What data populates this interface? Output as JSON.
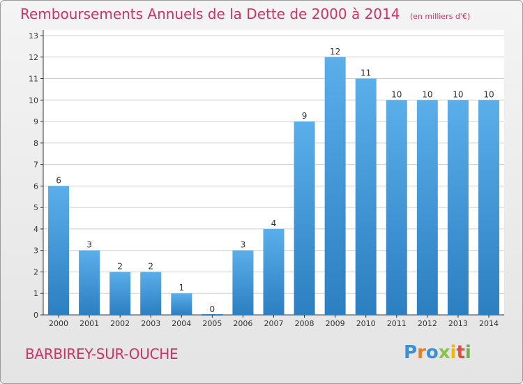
{
  "header": {
    "title": "Remboursements Annuels de la Dette de 2000 à 2014",
    "subtitle": "(en milliers d'€)"
  },
  "footer": {
    "commune": "BARBIREY-SUR-OUCHE",
    "logo_letters": [
      "P",
      "r",
      "o",
      "x",
      "i",
      "t",
      "i"
    ],
    "logo_colors": [
      "#3a8fd6",
      "#e67e22",
      "#3a8fd6",
      "#8bc34a",
      "#f5b800",
      "#e04e39",
      "#6db33f"
    ]
  },
  "colors": {
    "bar_light": "#5aaeea",
    "bar_dark": "#2c7fc0",
    "title": "#cc3366",
    "axis": "#333333",
    "grid": "#d0d0d0"
  },
  "chart_data": {
    "type": "bar",
    "title": "Remboursements Annuels de la Dette de 2000 à 2014",
    "subtitle": "(en milliers d'€)",
    "xlabel": "",
    "ylabel": "",
    "categories": [
      "2000",
      "2001",
      "2002",
      "2003",
      "2004",
      "2005",
      "2006",
      "2007",
      "2008",
      "2009",
      "2010",
      "2011",
      "2012",
      "2013",
      "2014"
    ],
    "values": [
      6,
      3,
      2,
      2,
      1,
      0,
      3,
      4,
      9,
      12,
      11,
      10,
      10,
      10,
      10
    ],
    "ylim": [
      0,
      13
    ],
    "yticks": [
      0,
      1,
      2,
      3,
      4,
      5,
      6,
      7,
      8,
      9,
      10,
      11,
      12,
      13
    ],
    "grid": "horizontal"
  }
}
